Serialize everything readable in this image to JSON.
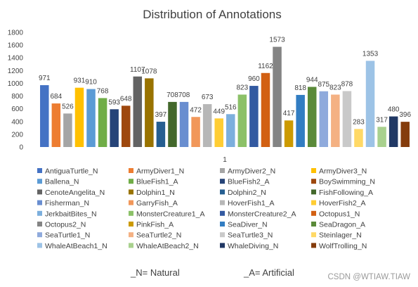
{
  "chart_data": {
    "type": "bar",
    "title": "Distribution of Annotations",
    "xlabel": "",
    "ylabel": "",
    "categories": [
      "1"
    ],
    "ylim": [
      0,
      1800
    ],
    "yticks": [
      0,
      200,
      400,
      600,
      800,
      1000,
      1200,
      1400,
      1600,
      1800
    ],
    "grid": false,
    "legend_position": "bottom",
    "series": [
      {
        "name": "AntiguaTurtle_N",
        "values": [
          971
        ],
        "color": "#4472c4"
      },
      {
        "name": "ArmyDiver1_N",
        "values": [
          684
        ],
        "color": "#ed7d31"
      },
      {
        "name": "ArmyDiver2_N",
        "values": [
          526
        ],
        "color": "#a5a5a5"
      },
      {
        "name": "ArmyDiver3_N",
        "values": [
          931
        ],
        "color": "#ffc000"
      },
      {
        "name": "Ballena_N",
        "values": [
          910
        ],
        "color": "#5b9bd5"
      },
      {
        "name": "BlueFish1_A",
        "values": [
          768
        ],
        "color": "#70ad47"
      },
      {
        "name": "BlueFish2_A",
        "values": [
          593
        ],
        "color": "#264478"
      },
      {
        "name": "BoySwimming_N",
        "values": [
          648
        ],
        "color": "#9e480e"
      },
      {
        "name": "CenoteAngelita_N",
        "values": [
          1107
        ],
        "color": "#636363"
      },
      {
        "name": "Dolphin1_N",
        "values": [
          1078
        ],
        "color": "#997300"
      },
      {
        "name": "Dolphin2_N",
        "values": [
          397
        ],
        "color": "#255e91"
      },
      {
        "name": "FishFollowing_A",
        "values": [
          708
        ],
        "color": "#43682b"
      },
      {
        "name": "Fisherman_N",
        "values": [
          708
        ],
        "color": "#698ed0"
      },
      {
        "name": "GarryFish_A",
        "values": [
          472
        ],
        "color": "#f1975a"
      },
      {
        "name": "HoverFish1_A",
        "values": [
          673
        ],
        "color": "#b7b7b7"
      },
      {
        "name": "HoverFish2_A",
        "values": [
          449
        ],
        "color": "#ffcd33"
      },
      {
        "name": "JerkbaitBites_N",
        "values": [
          516
        ],
        "color": "#7cafdd"
      },
      {
        "name": "MonsterCreature1_A",
        "values": [
          823
        ],
        "color": "#8cc168"
      },
      {
        "name": "MonsterCreature2_A",
        "values": [
          960
        ],
        "color": "#335aa1"
      },
      {
        "name": "Octopus1_N",
        "values": [
          1162
        ],
        "color": "#d26012"
      },
      {
        "name": "Octopus2_N",
        "values": [
          1573
        ],
        "color": "#848484"
      },
      {
        "name": "PinkFish_A",
        "values": [
          417
        ],
        "color": "#cc9a00"
      },
      {
        "name": "SeaDiver_N",
        "values": [
          818
        ],
        "color": "#327dc2"
      },
      {
        "name": "SeaDragon_A",
        "values": [
          944
        ],
        "color": "#5a8a39"
      },
      {
        "name": "SeaTurtle1_N",
        "values": [
          875
        ],
        "color": "#8faadc"
      },
      {
        "name": "SeaTurtle2_N",
        "values": [
          823
        ],
        "color": "#f4b183"
      },
      {
        "name": "SeaTurtle3_N",
        "values": [
          878
        ],
        "color": "#c9c9c9"
      },
      {
        "name": "Steinlager_N",
        "values": [
          283
        ],
        "color": "#ffd966"
      },
      {
        "name": "WhaleAtBeach1_N",
        "values": [
          1353
        ],
        "color": "#9dc3e6"
      },
      {
        "name": "WhaleAtBeach2_N",
        "values": [
          317
        ],
        "color": "#a9d18e"
      },
      {
        "name": "WhaleDiving_N",
        "values": [
          480
        ],
        "color": "#203864"
      },
      {
        "name": "WolfTrolling_N",
        "values": [
          396
        ],
        "color": "#843c0c"
      }
    ],
    "annotations": [
      "_N= Natural",
      "_A= Artificial"
    ]
  },
  "watermark": "CSDN @WTIAW.TIAW"
}
